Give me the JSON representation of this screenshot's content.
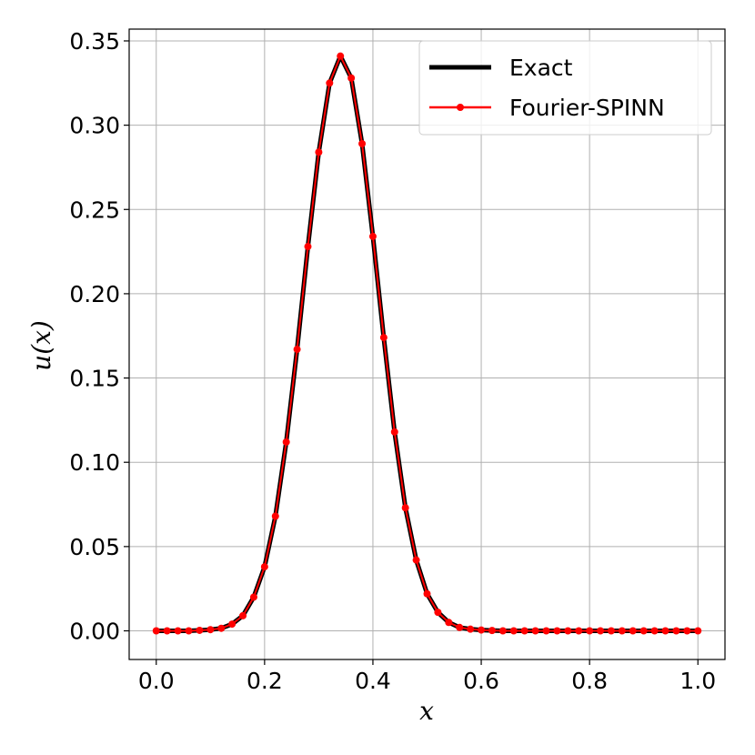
{
  "chart_data": {
    "type": "line",
    "title": "",
    "xlabel": "x",
    "ylabel": "u(x)",
    "xlim": [
      -0.05,
      1.05
    ],
    "ylim": [
      -0.017,
      0.357
    ],
    "xticks": [
      0.0,
      0.2,
      0.4,
      0.6,
      0.8,
      1.0
    ],
    "xtick_labels": [
      "0.0",
      "0.2",
      "0.4",
      "0.6",
      "0.8",
      "1.0"
    ],
    "yticks": [
      0.0,
      0.05,
      0.1,
      0.15,
      0.2,
      0.25,
      0.3,
      0.35
    ],
    "ytick_labels": [
      "0.00",
      "0.05",
      "0.10",
      "0.15",
      "0.20",
      "0.25",
      "0.30",
      "0.35"
    ],
    "grid": true,
    "legend_position": "top-right",
    "x": [
      0.0,
      0.02,
      0.04,
      0.06,
      0.08,
      0.1,
      0.12,
      0.14,
      0.16,
      0.18,
      0.2,
      0.22,
      0.24,
      0.26,
      0.28,
      0.3,
      0.32,
      0.34,
      0.36,
      0.38,
      0.4,
      0.42,
      0.44,
      0.46,
      0.48,
      0.5,
      0.52,
      0.54,
      0.56,
      0.58,
      0.6,
      0.62,
      0.64,
      0.66,
      0.68,
      0.7,
      0.72,
      0.74,
      0.76,
      0.78,
      0.8,
      0.82,
      0.84,
      0.86,
      0.88,
      0.9,
      0.92,
      0.94,
      0.96,
      0.98,
      1.0
    ],
    "series": [
      {
        "name": "Exact",
        "color": "#000000",
        "values": [
          0.0,
          0.0,
          0.0,
          0.0,
          0.0003,
          0.0007,
          0.0015,
          0.004,
          0.009,
          0.02,
          0.038,
          0.068,
          0.112,
          0.167,
          0.228,
          0.284,
          0.325,
          0.341,
          0.328,
          0.289,
          0.234,
          0.174,
          0.118,
          0.073,
          0.042,
          0.022,
          0.011,
          0.005,
          0.002,
          0.001,
          0.0005,
          0.0002,
          0.0,
          0.0,
          0.0,
          0.0,
          0.0,
          0.0,
          0.0,
          0.0,
          0.0,
          0.0,
          0.0,
          0.0,
          0.0,
          0.0,
          0.0,
          0.0,
          0.0,
          0.0,
          0.0
        ]
      },
      {
        "name": "Fourier-SPINN",
        "color": "#ff0000",
        "values": [
          0.0,
          0.0,
          0.0,
          0.0,
          0.0003,
          0.0007,
          0.0015,
          0.004,
          0.009,
          0.02,
          0.038,
          0.068,
          0.112,
          0.167,
          0.228,
          0.284,
          0.325,
          0.341,
          0.328,
          0.289,
          0.234,
          0.174,
          0.118,
          0.073,
          0.042,
          0.022,
          0.011,
          0.005,
          0.002,
          0.001,
          0.0005,
          0.0002,
          0.0,
          0.0,
          0.0,
          0.0,
          0.0,
          0.0,
          0.0,
          0.0,
          0.0,
          0.0,
          0.0,
          0.0,
          0.0,
          0.0,
          0.0,
          0.0,
          0.0,
          0.0,
          0.0
        ]
      }
    ]
  }
}
